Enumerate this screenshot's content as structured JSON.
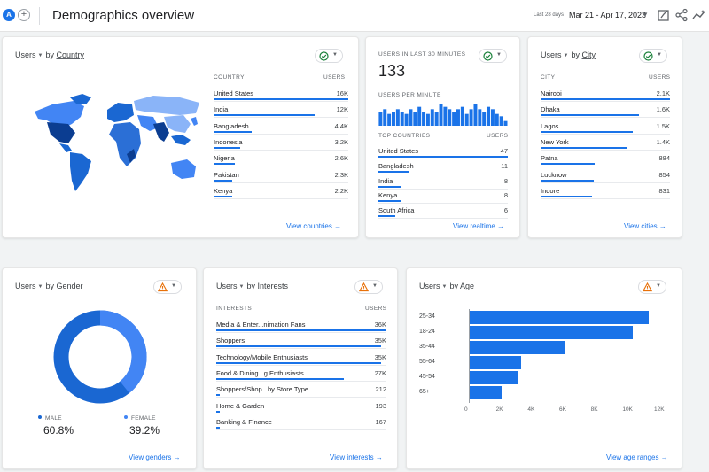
{
  "header": {
    "avatar_letter": "A",
    "add_glyph": "+",
    "title": "Demographics overview",
    "date_hint": "Last 28 days",
    "date_range": "Mar 21 - Apr 17, 2023",
    "icons": [
      "customize-report-icon",
      "share-icon",
      "insights-icon"
    ]
  },
  "country_card": {
    "metric": "Users",
    "by": "by",
    "dimension": "Country",
    "col_dimension": "COUNTRY",
    "col_metric": "USERS",
    "rows": [
      {
        "label": "United States",
        "value": "16K",
        "share": 1.0
      },
      {
        "label": "India",
        "value": "12K",
        "share": 0.75
      },
      {
        "label": "Bangladesh",
        "value": "4.4K",
        "share": 0.28
      },
      {
        "label": "Indonesia",
        "value": "3.2K",
        "share": 0.2
      },
      {
        "label": "Nigeria",
        "value": "2.6K",
        "share": 0.16
      },
      {
        "label": "Pakistan",
        "value": "2.3K",
        "share": 0.14
      },
      {
        "label": "Kenya",
        "value": "2.2K",
        "share": 0.14
      }
    ],
    "link": "View countries",
    "status": "ok"
  },
  "realtime_card": {
    "heading": "USERS IN LAST 30 MINUTES",
    "count": "133",
    "per_minute": "USERS PER MINUTE",
    "per_minute_values": [
      6,
      7,
      5,
      6,
      7,
      6,
      5,
      7,
      6,
      8,
      6,
      5,
      7,
      6,
      9,
      8,
      7,
      6,
      7,
      8,
      5,
      7,
      9,
      7,
      6,
      8,
      7,
      5,
      4,
      2
    ],
    "col_dimension": "TOP COUNTRIES",
    "col_metric": "USERS",
    "rows": [
      {
        "label": "United States",
        "value": "47",
        "share": 1.0
      },
      {
        "label": "Bangladesh",
        "value": "11",
        "share": 0.23
      },
      {
        "label": "India",
        "value": "8",
        "share": 0.17
      },
      {
        "label": "Kenya",
        "value": "8",
        "share": 0.17
      },
      {
        "label": "South Africa",
        "value": "6",
        "share": 0.13
      }
    ],
    "link": "View realtime",
    "status": "ok"
  },
  "city_card": {
    "metric": "Users",
    "by": "by",
    "dimension": "City",
    "col_dimension": "CITY",
    "col_metric": "USERS",
    "rows": [
      {
        "label": "Nairobi",
        "value": "2.1K",
        "share": 1.0
      },
      {
        "label": "Dhaka",
        "value": "1.6K",
        "share": 0.76
      },
      {
        "label": "Lagos",
        "value": "1.5K",
        "share": 0.71
      },
      {
        "label": "New York",
        "value": "1.4K",
        "share": 0.67
      },
      {
        "label": "Patna",
        "value": "884",
        "share": 0.42
      },
      {
        "label": "Lucknow",
        "value": "854",
        "share": 0.41
      },
      {
        "label": "Indore",
        "value": "831",
        "share": 0.4
      }
    ],
    "link": "View cities",
    "status": "ok"
  },
  "gender_card": {
    "metric": "Users",
    "by": "by",
    "dimension": "Gender",
    "male_label": "MALE",
    "male_pct": "60.8%",
    "male_share": 0.608,
    "female_label": "FEMALE",
    "female_pct": "39.2%",
    "female_share": 0.392,
    "link": "View genders",
    "status": "warning",
    "colors": {
      "male": "#1a67d2",
      "female": "#4285f4"
    }
  },
  "interests_card": {
    "metric": "Users",
    "by": "by",
    "dimension": "Interests",
    "col_dimension": "INTERESTS",
    "col_metric": "USERS",
    "rows": [
      {
        "label": "Media & Enter...nimation Fans",
        "value": "36K",
        "share": 1.0
      },
      {
        "label": "Shoppers",
        "value": "35K",
        "share": 0.97
      },
      {
        "label": "Technology/Mobile Enthusiasts",
        "value": "35K",
        "share": 0.97
      },
      {
        "label": "Food & Dining...g Enthusiasts",
        "value": "27K",
        "share": 0.75
      },
      {
        "label": "Shoppers/Shop...by Store Type",
        "value": "212",
        "share": 0.01
      },
      {
        "label": "Home & Garden",
        "value": "193",
        "share": 0.01
      },
      {
        "label": "Banking & Finance",
        "value": "167",
        "share": 0.01
      }
    ],
    "link": "View interests",
    "status": "warning"
  },
  "age_card": {
    "metric": "Users",
    "by": "by",
    "dimension": "Age",
    "link": "View age ranges",
    "status": "warning"
  },
  "chart_data": {
    "type": "bar",
    "orientation": "horizontal",
    "categories": [
      "25-34",
      "18-24",
      "35-44",
      "55-64",
      "45-54",
      "65+"
    ],
    "values": [
      11400,
      10400,
      6100,
      3300,
      3100,
      2100
    ],
    "x_ticks": [
      "0",
      "2K",
      "4K",
      "6K",
      "8K",
      "10K",
      "12K"
    ],
    "xlim": [
      0,
      12000
    ],
    "color": "#1a73e8"
  },
  "colors": {
    "accent": "#1a73e8",
    "ok": "#188038",
    "warning": "#e8710a"
  }
}
